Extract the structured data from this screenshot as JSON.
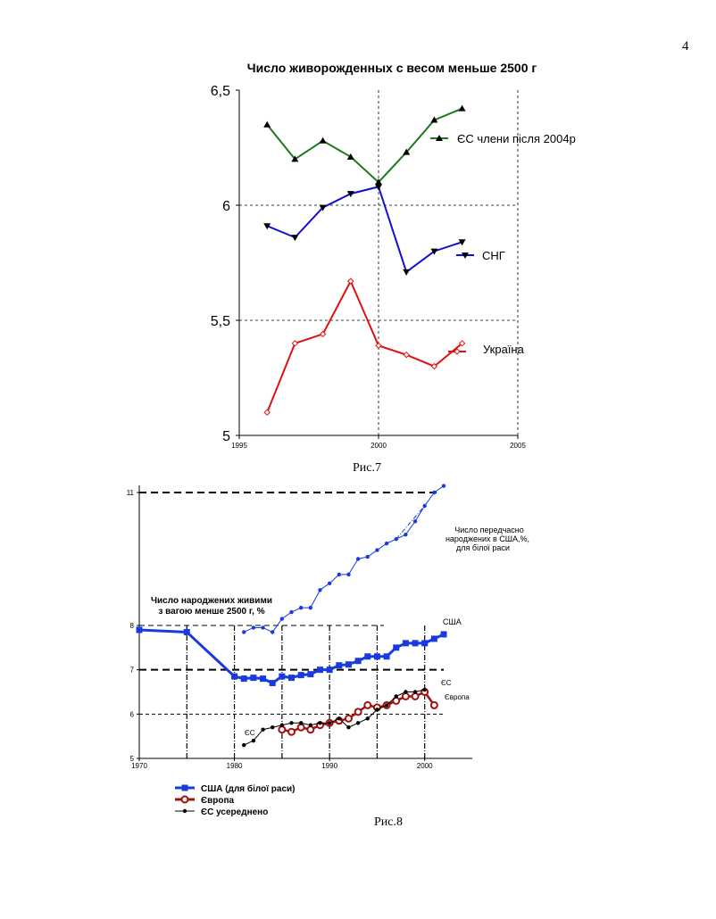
{
  "page": {
    "number": "4"
  },
  "captions": {
    "fig7": "Рис.7",
    "fig8": "Рис.8"
  },
  "chart_data": [
    {
      "type": "line",
      "title": "Число живорожденных с весом меньше 2500 г",
      "xlabel": "",
      "ylabel": "",
      "xlim": [
        1995,
        2005
      ],
      "ylim": [
        5,
        6.5
      ],
      "x_ticks": [
        "1995",
        "2000",
        "2005"
      ],
      "y_ticks": [
        "5",
        "5,5",
        "6",
        "6,5"
      ],
      "grid": "dashed lines at x=2000, x=2005, y=5.5, y=6",
      "series": [
        {
          "name": "ЄС члени після 2004р",
          "color": "#1b7a1b",
          "marker": "triangle-up",
          "x": [
            1996,
            1997,
            1998,
            1999,
            2000,
            2001,
            2002,
            2003
          ],
          "values": [
            6.35,
            6.2,
            6.28,
            6.21,
            6.1,
            6.23,
            6.37,
            6.42
          ]
        },
        {
          "name": "СНГ",
          "color": "#1010d0",
          "marker": "triangle-down",
          "x": [
            1996,
            1997,
            1998,
            1999,
            2000,
            2001,
            2002,
            2003
          ],
          "values": [
            5.91,
            5.86,
            5.99,
            6.05,
            6.08,
            5.71,
            5.8,
            5.84
          ]
        },
        {
          "name": "Україна",
          "color": "#e01010",
          "marker": "diamond",
          "x": [
            1996,
            1997,
            1998,
            1999,
            2000,
            2001,
            2002,
            2003
          ],
          "values": [
            5.1,
            5.4,
            5.44,
            5.67,
            5.39,
            5.35,
            5.3,
            5.4
          ]
        }
      ]
    },
    {
      "type": "line",
      "title": "Число народжених живими з вагою менше 2500 г, %",
      "xlabel": "",
      "ylabel": "",
      "xlim": [
        1970,
        2005
      ],
      "ylim": [
        5,
        11
      ],
      "x_ticks": [
        "1970",
        "1980",
        "1990",
        "2000"
      ],
      "y_ticks": [
        "5",
        "6",
        "7",
        "8",
        "11"
      ],
      "annotation": "Число передчасно народжених в США,%, для білої раси",
      "series": [
        {
          "name": "США (для білої раси)",
          "label": "США",
          "color": "#1a3ae0",
          "marker": "square",
          "x": [
            1970,
            1975,
            1980,
            1981,
            1982,
            1983,
            1984,
            1985,
            1986,
            1987,
            1988,
            1989,
            1990,
            1991,
            1992,
            1993,
            1994,
            1995,
            1996,
            1997,
            1998,
            1999,
            2000,
            2001,
            2002
          ],
          "values": [
            7.9,
            7.85,
            6.85,
            6.8,
            6.82,
            6.8,
            6.7,
            6.85,
            6.82,
            6.88,
            6.9,
            7.0,
            7.0,
            7.1,
            7.12,
            7.2,
            7.3,
            7.3,
            7.3,
            7.5,
            7.6,
            7.6,
            7.6,
            7.7,
            7.8
          ]
        },
        {
          "name": "Європа",
          "color": "#a01010",
          "marker": "circle-open",
          "x": [
            1985,
            1986,
            1987,
            1988,
            1989,
            1990,
            1991,
            1992,
            1993,
            1994,
            1995,
            1996,
            1997,
            1998,
            1999,
            2000,
            2001
          ],
          "values": [
            5.65,
            5.6,
            5.7,
            5.65,
            5.75,
            5.8,
            5.85,
            5.9,
            6.05,
            6.2,
            6.15,
            6.2,
            6.3,
            6.4,
            6.4,
            6.5,
            6.2
          ]
        },
        {
          "name": "ЄС усереднено",
          "label": "ЄС",
          "color": "#000000",
          "marker": "dot",
          "x": [
            1981,
            1982,
            1983,
            1984,
            1985,
            1986,
            1987,
            1988,
            1989,
            1990,
            1991,
            1992,
            1993,
            1994,
            1995,
            1996,
            1997,
            1998,
            1999,
            2000
          ],
          "values": [
            5.3,
            5.4,
            5.65,
            5.7,
            5.75,
            5.8,
            5.8,
            5.75,
            5.8,
            5.8,
            5.9,
            5.7,
            5.8,
            5.9,
            6.1,
            6.2,
            6.4,
            6.5,
            6.5,
            6.55
          ]
        },
        {
          "name": "",
          "color": "#1a3ae0",
          "marker": "dot",
          "style": "thin",
          "x": [
            1981,
            1982,
            1983,
            1984,
            1985,
            1986,
            1987,
            1988,
            1989,
            1990,
            1991,
            1992,
            1993,
            1994,
            1995,
            1996,
            1997,
            1998,
            1999,
            2000,
            2001,
            2002
          ],
          "values": [
            7.85,
            7.95,
            7.95,
            7.85,
            8.15,
            8.3,
            8.4,
            8.4,
            8.8,
            8.95,
            9.15,
            9.15,
            9.5,
            9.55,
            9.7,
            9.85,
            9.95,
            10.05,
            10.35,
            10.7,
            11.0,
            11.15
          ]
        }
      ],
      "legend_items": [
        "США (для білої раси)",
        "Європа",
        "ЄС усереднено"
      ]
    }
  ]
}
